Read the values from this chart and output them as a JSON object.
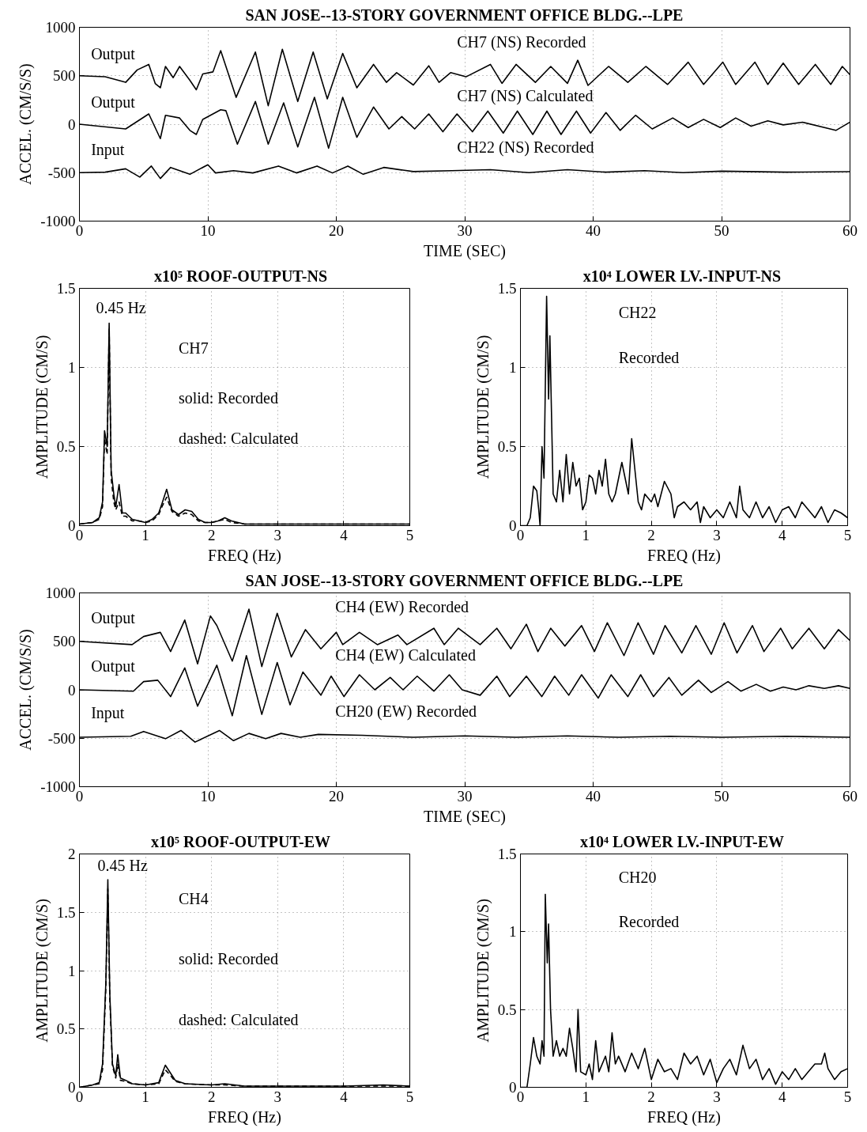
{
  "chart_data": [
    {
      "type": "line",
      "title": "SAN JOSE--13-STORY GOVERNMENT OFFICE BLDG.--LPE",
      "xlabel": "TIME (SEC)",
      "ylabel": "ACCEL. (CM/S/S)",
      "xlim": [
        0,
        60
      ],
      "ylim": [
        -1000,
        1000
      ],
      "xticks": [
        0,
        10,
        20,
        30,
        40,
        50,
        60
      ],
      "yticks": [
        -1000,
        -500,
        0,
        500,
        1000
      ],
      "grid": true,
      "annotations": [
        "Output",
        "CH7 (NS) Recorded",
        "Output",
        "CH7 (NS) Calculated",
        "Input",
        "CH22 (NS) Recorded"
      ],
      "series": [
        {
          "color": "#000000",
          "x": [
            0,
            2,
            3.6,
            4.5,
            5.4,
            5.9,
            6.3,
            6.7,
            7.3,
            7.8,
            8.6,
            9.1,
            9.6,
            10.4,
            11.0,
            12.2,
            13.7,
            14.7,
            15.8,
            17.0,
            18.2,
            19.3,
            20.5,
            21.6,
            22.9,
            23.9,
            24.7,
            26.0,
            27.2,
            28.0,
            28.9,
            30.1,
            32.0,
            32.9,
            34.0,
            35.5,
            36.7,
            38.0,
            38.8,
            39.6,
            41.2,
            42.7,
            44.1,
            45.8,
            47.4,
            48.6,
            50.1,
            51.1,
            52.6,
            53.6,
            54.8,
            56.0,
            57.3,
            58.5,
            59.4,
            60
          ],
          "values": [
            500,
            490,
            432,
            560,
            617,
            420,
            376,
            596,
            480,
            596,
            453,
            355,
            518,
            540,
            759,
            277,
            745,
            191,
            773,
            234,
            745,
            262,
            730,
            376,
            617,
            432,
            532,
            404,
            603,
            432,
            532,
            489,
            617,
            421,
            617,
            432,
            596,
            421,
            660,
            400,
            596,
            432,
            596,
            410,
            640,
            410,
            640,
            410,
            640,
            410,
            630,
            410,
            617,
            410,
            596,
            510
          ]
        },
        {
          "color": "#000000",
          "x": [
            0,
            3.6,
            5.4,
            6.3,
            6.7,
            7.8,
            8.6,
            9.1,
            9.6,
            11.0,
            11.4,
            12.3,
            13.7,
            14.7,
            15.9,
            17.0,
            18.3,
            19.4,
            20.5,
            21.6,
            22.9,
            24.1,
            25.1,
            26.1,
            27.2,
            28.3,
            29.4,
            30.6,
            31.8,
            33.0,
            34.1,
            35.3,
            36.4,
            37.5,
            38.7,
            39.8,
            41.0,
            42.1,
            43.3,
            44.6,
            46.2,
            47.4,
            48.6,
            49.9,
            51.1,
            52.3,
            53.6,
            54.8,
            56.3,
            58.9,
            60
          ],
          "values": [
            0,
            -49,
            106,
            -149,
            92,
            64,
            -64,
            -106,
            49,
            149,
            140,
            -206,
            234,
            -206,
            220,
            -234,
            277,
            -248,
            277,
            -135,
            177,
            -49,
            78,
            -49,
            106,
            -78,
            106,
            -78,
            135,
            -92,
            135,
            -106,
            135,
            -106,
            135,
            -92,
            120,
            -64,
            92,
            -49,
            64,
            -35,
            50,
            -35,
            64,
            -21,
            35,
            -7,
            21,
            -64,
            21
          ]
        },
        {
          "color": "#000000",
          "x": [
            0,
            2,
            3.6,
            4.7,
            5.6,
            6.3,
            7.1,
            8.6,
            10.0,
            10.6,
            12.0,
            13.5,
            15.5,
            16.9,
            18.5,
            19.7,
            20.9,
            22.1,
            23.7,
            26.0,
            29.0,
            32.0,
            35.0,
            38.0,
            41.0,
            44.0,
            47.0,
            50.0,
            55.0,
            60
          ],
          "values": [
            -500,
            -495,
            -460,
            -546,
            -432,
            -560,
            -446,
            -517,
            -418,
            -503,
            -480,
            -503,
            -432,
            -503,
            -432,
            -503,
            -432,
            -517,
            -446,
            -489,
            -480,
            -470,
            -500,
            -470,
            -495,
            -480,
            -500,
            -485,
            -495,
            -490
          ]
        }
      ]
    },
    {
      "type": "line",
      "title": "x10⁵   ROOF-OUTPUT-NS",
      "xlabel": "FREQ (Hz)",
      "ylabel": "AMPLITUDE (CM/S)",
      "xlim": [
        0,
        5
      ],
      "ylim": [
        0,
        1.5
      ],
      "xticks": [
        0,
        1,
        2,
        3,
        4,
        5
      ],
      "yticks": [
        0,
        0.5,
        1,
        1.5
      ],
      "grid": true,
      "annotations": [
        "0.45 Hz",
        "CH7",
        "solid: Recorded",
        "dashed: Calculated"
      ],
      "series": [
        {
          "color": "#000000",
          "line_style": "solid",
          "x": [
            0,
            0.2,
            0.3,
            0.35,
            0.38,
            0.42,
            0.45,
            0.48,
            0.52,
            0.55,
            0.6,
            0.65,
            0.7,
            0.8,
            0.9,
            1.0,
            1.1,
            1.2,
            1.25,
            1.32,
            1.4,
            1.5,
            1.6,
            1.7,
            1.8,
            1.9,
            2.0,
            2.1,
            2.2,
            2.3,
            2.5,
            3,
            4,
            5
          ],
          "values": [
            0.01,
            0.02,
            0.05,
            0.15,
            0.6,
            0.5,
            1.28,
            0.35,
            0.2,
            0.12,
            0.26,
            0.08,
            0.08,
            0.04,
            0.03,
            0.02,
            0.04,
            0.08,
            0.14,
            0.23,
            0.1,
            0.07,
            0.1,
            0.09,
            0.04,
            0.02,
            0.02,
            0.03,
            0.05,
            0.03,
            0.01,
            0.01,
            0.01,
            0.01
          ]
        },
        {
          "color": "#000000",
          "line_style": "dashed",
          "x": [
            0,
            0.2,
            0.3,
            0.35,
            0.38,
            0.42,
            0.45,
            0.48,
            0.52,
            0.55,
            0.6,
            0.65,
            0.7,
            0.8,
            0.9,
            1.0,
            1.1,
            1.2,
            1.25,
            1.32,
            1.4,
            1.5,
            1.6,
            1.7,
            1.8,
            1.9,
            2.0,
            2.1,
            2.2,
            2.3,
            2.5,
            3,
            4,
            5
          ],
          "values": [
            0.01,
            0.02,
            0.04,
            0.12,
            0.55,
            0.45,
            1.25,
            0.3,
            0.15,
            0.1,
            0.15,
            0.06,
            0.06,
            0.03,
            0.03,
            0.02,
            0.03,
            0.07,
            0.12,
            0.18,
            0.09,
            0.06,
            0.08,
            0.07,
            0.03,
            0.02,
            0.02,
            0.03,
            0.04,
            0.02,
            0.01,
            0.01,
            0.01,
            0.01
          ]
        }
      ]
    },
    {
      "type": "line",
      "title": "x10⁴  LOWER LV.-INPUT-NS",
      "xlabel": "FREQ (Hz)",
      "ylabel": "AMPLITUDE (CM/S)",
      "xlim": [
        0,
        5
      ],
      "ylim": [
        0,
        1.5
      ],
      "xticks": [
        0,
        1,
        2,
        3,
        4,
        5
      ],
      "yticks": [
        0,
        0.5,
        1,
        1.5
      ],
      "grid": true,
      "annotations": [
        "CH22",
        "Recorded"
      ],
      "series": [
        {
          "color": "#000000",
          "x": [
            0,
            0.1,
            0.15,
            0.2,
            0.25,
            0.28,
            0.3,
            0.33,
            0.36,
            0.4,
            0.43,
            0.45,
            0.5,
            0.55,
            0.6,
            0.65,
            0.7,
            0.75,
            0.8,
            0.85,
            0.9,
            0.95,
            1.0,
            1.05,
            1.1,
            1.15,
            1.2,
            1.25,
            1.3,
            1.35,
            1.4,
            1.45,
            1.55,
            1.6,
            1.65,
            1.7,
            1.75,
            1.8,
            1.85,
            1.9,
            2.0,
            2.05,
            2.1,
            2.2,
            2.3,
            2.35,
            2.4,
            2.5,
            2.6,
            2.7,
            2.75,
            2.8,
            2.9,
            3.0,
            3.1,
            3.2,
            3.3,
            3.35,
            3.4,
            3.5,
            3.6,
            3.7,
            3.8,
            3.9,
            4.0,
            4.1,
            4.2,
            4.3,
            4.4,
            4.5,
            4.6,
            4.7,
            4.8,
            4.9,
            5
          ],
          "values": [
            0,
            0,
            0.05,
            0.25,
            0.22,
            0.1,
            0,
            0.5,
            0.3,
            1.45,
            0.8,
            1.2,
            0.2,
            0.15,
            0.35,
            0.15,
            0.45,
            0.2,
            0.4,
            0.25,
            0.3,
            0.1,
            0.15,
            0.32,
            0.3,
            0.2,
            0.35,
            0.25,
            0.42,
            0.2,
            0.15,
            0.2,
            0.4,
            0.3,
            0.2,
            0.55,
            0.35,
            0.15,
            0.1,
            0.2,
            0.15,
            0.2,
            0.12,
            0.28,
            0.2,
            0.05,
            0.12,
            0.15,
            0.1,
            0.15,
            0.02,
            0.12,
            0.05,
            0.1,
            0.05,
            0.15,
            0.05,
            0.25,
            0.1,
            0.05,
            0.15,
            0.05,
            0.12,
            0.02,
            0.1,
            0.12,
            0.05,
            0.15,
            0.1,
            0.05,
            0.12,
            0.02,
            0.1,
            0.08,
            0.05
          ]
        }
      ]
    },
    {
      "type": "line",
      "title": "SAN JOSE--13-STORY GOVERNMENT OFFICE BLDG.--LPE",
      "xlabel": "TIME (SEC)",
      "ylabel": "ACCEL. (CM/S/S)",
      "xlim": [
        0,
        60
      ],
      "ylim": [
        -1000,
        1000
      ],
      "xticks": [
        0,
        10,
        20,
        30,
        40,
        50,
        60
      ],
      "yticks": [
        -1000,
        -500,
        0,
        500,
        1000
      ],
      "grid": true,
      "annotations": [
        "Output",
        "CH4 (EW) Recorded",
        "Output",
        "CH4 (EW) Calculated",
        "Input",
        "CH20 (EW) Recorded"
      ],
      "series": [
        {
          "color": "#000000",
          "x": [
            0,
            4.1,
            5.0,
            6.3,
            7.1,
            8.2,
            9.2,
            10.2,
            10.7,
            11.9,
            13.2,
            14.2,
            15.4,
            16.5,
            17.6,
            18.8,
            20.0,
            20.5,
            21.8,
            23.2,
            24.8,
            25.5,
            27.6,
            28.4,
            29.5,
            31.2,
            32.5,
            33.6,
            34.8,
            35.7,
            36.7,
            37.8,
            39.1,
            40.1,
            41.1,
            42.4,
            43.5,
            44.7,
            45.6,
            46.9,
            48.0,
            49.2,
            50.2,
            51.2,
            52.4,
            53.3,
            54.6,
            55.5,
            56.8,
            58.0,
            59.1,
            60
          ],
          "values": [
            500,
            466,
            550,
            593,
            395,
            720,
            268,
            762,
            663,
            296,
            832,
            240,
            790,
            339,
            621,
            423,
            593,
            466,
            593,
            466,
            565,
            466,
            635,
            466,
            635,
            466,
            635,
            423,
            677,
            395,
            635,
            452,
            663,
            395,
            692,
            353,
            692,
            367,
            663,
            381,
            663,
            367,
            692,
            381,
            663,
            395,
            635,
            423,
            635,
            423,
            621,
            508
          ]
        },
        {
          "color": "#000000",
          "x": [
            0,
            4.2,
            5.0,
            6.1,
            7.1,
            8.2,
            9.2,
            10.7,
            11.9,
            13.0,
            14.2,
            15.4,
            16.4,
            17.4,
            18.8,
            19.6,
            20.6,
            21.8,
            23.0,
            24.2,
            25.2,
            26.3,
            27.6,
            28.8,
            29.8,
            31.2,
            32.5,
            33.5,
            34.8,
            36.0,
            37.0,
            38.1,
            39.1,
            40.4,
            41.4,
            42.7,
            43.7,
            44.7,
            45.9,
            46.9,
            48.2,
            49.2,
            50.5,
            51.5,
            52.7,
            53.8,
            54.8,
            55.8,
            56.8,
            58.0,
            59.1,
            60
          ],
          "values": [
            0,
            -14,
            85,
            99,
            -70,
            226,
            -169,
            254,
            -268,
            353,
            -254,
            282,
            -155,
            184,
            -56,
            141,
            -70,
            155,
            0,
            127,
            0,
            141,
            -14,
            155,
            0,
            -56,
            141,
            -70,
            141,
            -70,
            141,
            -56,
            155,
            -85,
            155,
            -70,
            155,
            -70,
            127,
            -56,
            99,
            -28,
            85,
            -14,
            56,
            -14,
            28,
            0,
            42,
            14,
            42,
            14
          ]
        },
        {
          "color": "#000000",
          "x": [
            0,
            4,
            5.0,
            6.7,
            7.9,
            9.0,
            10.9,
            12.0,
            13.2,
            14.5,
            15.7,
            17.2,
            18.6,
            22,
            26,
            30,
            34,
            38,
            42,
            46,
            50,
            55,
            60
          ],
          "values": [
            -490,
            -480,
            -430,
            -505,
            -420,
            -540,
            -420,
            -525,
            -450,
            -505,
            -450,
            -490,
            -460,
            -470,
            -490,
            -475,
            -490,
            -475,
            -490,
            -480,
            -490,
            -480,
            -490
          ]
        }
      ]
    },
    {
      "type": "line",
      "title": "x10⁵   ROOF-OUTPUT-EW",
      "xlabel": "FREQ (Hz)",
      "ylabel": "AMPLITUDE (CM/S)",
      "xlim": [
        0,
        5
      ],
      "ylim": [
        0,
        2
      ],
      "xticks": [
        0,
        1,
        2,
        3,
        4,
        5
      ],
      "yticks": [
        0,
        0.5,
        1,
        1.5,
        2
      ],
      "grid": true,
      "annotations": [
        "0.45 Hz",
        "CH4",
        "solid: Recorded",
        "dashed: Calculated"
      ],
      "series": [
        {
          "color": "#000000",
          "line_style": "solid",
          "x": [
            0,
            0.2,
            0.3,
            0.35,
            0.4,
            0.43,
            0.46,
            0.5,
            0.55,
            0.58,
            0.62,
            0.7,
            0.8,
            1.0,
            1.2,
            1.3,
            1.38,
            1.45,
            1.6,
            2.0,
            2.2,
            2.5,
            3,
            4,
            4.6,
            5
          ],
          "values": [
            0,
            0.02,
            0.04,
            0.2,
            0.9,
            1.78,
            0.8,
            0.2,
            0.1,
            0.28,
            0.08,
            0.06,
            0.03,
            0.02,
            0.04,
            0.19,
            0.12,
            0.06,
            0.03,
            0.02,
            0.03,
            0.01,
            0.01,
            0.01,
            0.02,
            0.01
          ]
        },
        {
          "color": "#000000",
          "line_style": "dashed",
          "x": [
            0,
            0.2,
            0.3,
            0.35,
            0.4,
            0.43,
            0.46,
            0.5,
            0.55,
            0.58,
            0.62,
            0.7,
            0.8,
            1.0,
            1.2,
            1.3,
            1.38,
            1.45,
            1.6,
            2.0,
            2.2,
            2.5,
            3,
            4,
            4.6,
            5
          ],
          "values": [
            0,
            0.02,
            0.03,
            0.15,
            0.85,
            1.7,
            0.75,
            0.18,
            0.08,
            0.2,
            0.06,
            0.05,
            0.03,
            0.02,
            0.03,
            0.15,
            0.1,
            0.05,
            0.03,
            0.02,
            0.02,
            0.01,
            0.01,
            0.01,
            0.01,
            0.01
          ]
        }
      ]
    },
    {
      "type": "line",
      "title": "x10⁴  LOWER LV.-INPUT-EW",
      "xlabel": "FREQ (Hz)",
      "ylabel": "AMPLITUDE (CM/S)",
      "xlim": [
        0,
        5
      ],
      "ylim": [
        0,
        1.5
      ],
      "xticks": [
        0,
        1,
        2,
        3,
        4,
        5
      ],
      "yticks": [
        0,
        0.5,
        1,
        1.5
      ],
      "grid": true,
      "annotations": [
        "CH20",
        "Recorded"
      ],
      "series": [
        {
          "color": "#000000",
          "x": [
            0,
            0.1,
            0.15,
            0.2,
            0.25,
            0.3,
            0.33,
            0.36,
            0.38,
            0.41,
            0.43,
            0.46,
            0.5,
            0.55,
            0.6,
            0.65,
            0.7,
            0.75,
            0.8,
            0.85,
            0.88,
            0.92,
            1.0,
            1.05,
            1.1,
            1.15,
            1.2,
            1.3,
            1.35,
            1.4,
            1.45,
            1.5,
            1.6,
            1.7,
            1.8,
            1.9,
            2.0,
            2.1,
            2.2,
            2.3,
            2.4,
            2.5,
            2.6,
            2.7,
            2.8,
            2.9,
            3.0,
            3.1,
            3.2,
            3.3,
            3.4,
            3.5,
            3.6,
            3.7,
            3.8,
            3.9,
            4.0,
            4.1,
            4.2,
            4.3,
            4.4,
            4.5,
            4.6,
            4.65,
            4.7,
            4.8,
            4.9,
            5
          ],
          "values": [
            0,
            0,
            0.15,
            0.32,
            0.2,
            0.15,
            0.3,
            0.2,
            1.24,
            0.8,
            1.05,
            0.5,
            0.2,
            0.3,
            0.2,
            0.25,
            0.2,
            0.38,
            0.25,
            0.1,
            0.5,
            0.1,
            0.08,
            0.15,
            0.05,
            0.3,
            0.1,
            0.2,
            0.1,
            0.35,
            0.15,
            0.2,
            0.1,
            0.22,
            0.12,
            0.25,
            0.05,
            0.18,
            0.1,
            0.12,
            0.05,
            0.22,
            0.15,
            0.2,
            0.08,
            0.18,
            0.03,
            0.12,
            0.18,
            0.08,
            0.27,
            0.12,
            0.18,
            0.05,
            0.12,
            0.02,
            0.1,
            0.05,
            0.12,
            0.05,
            0.1,
            0.15,
            0.15,
            0.22,
            0.12,
            0.05,
            0.1,
            0.12
          ]
        }
      ]
    }
  ]
}
